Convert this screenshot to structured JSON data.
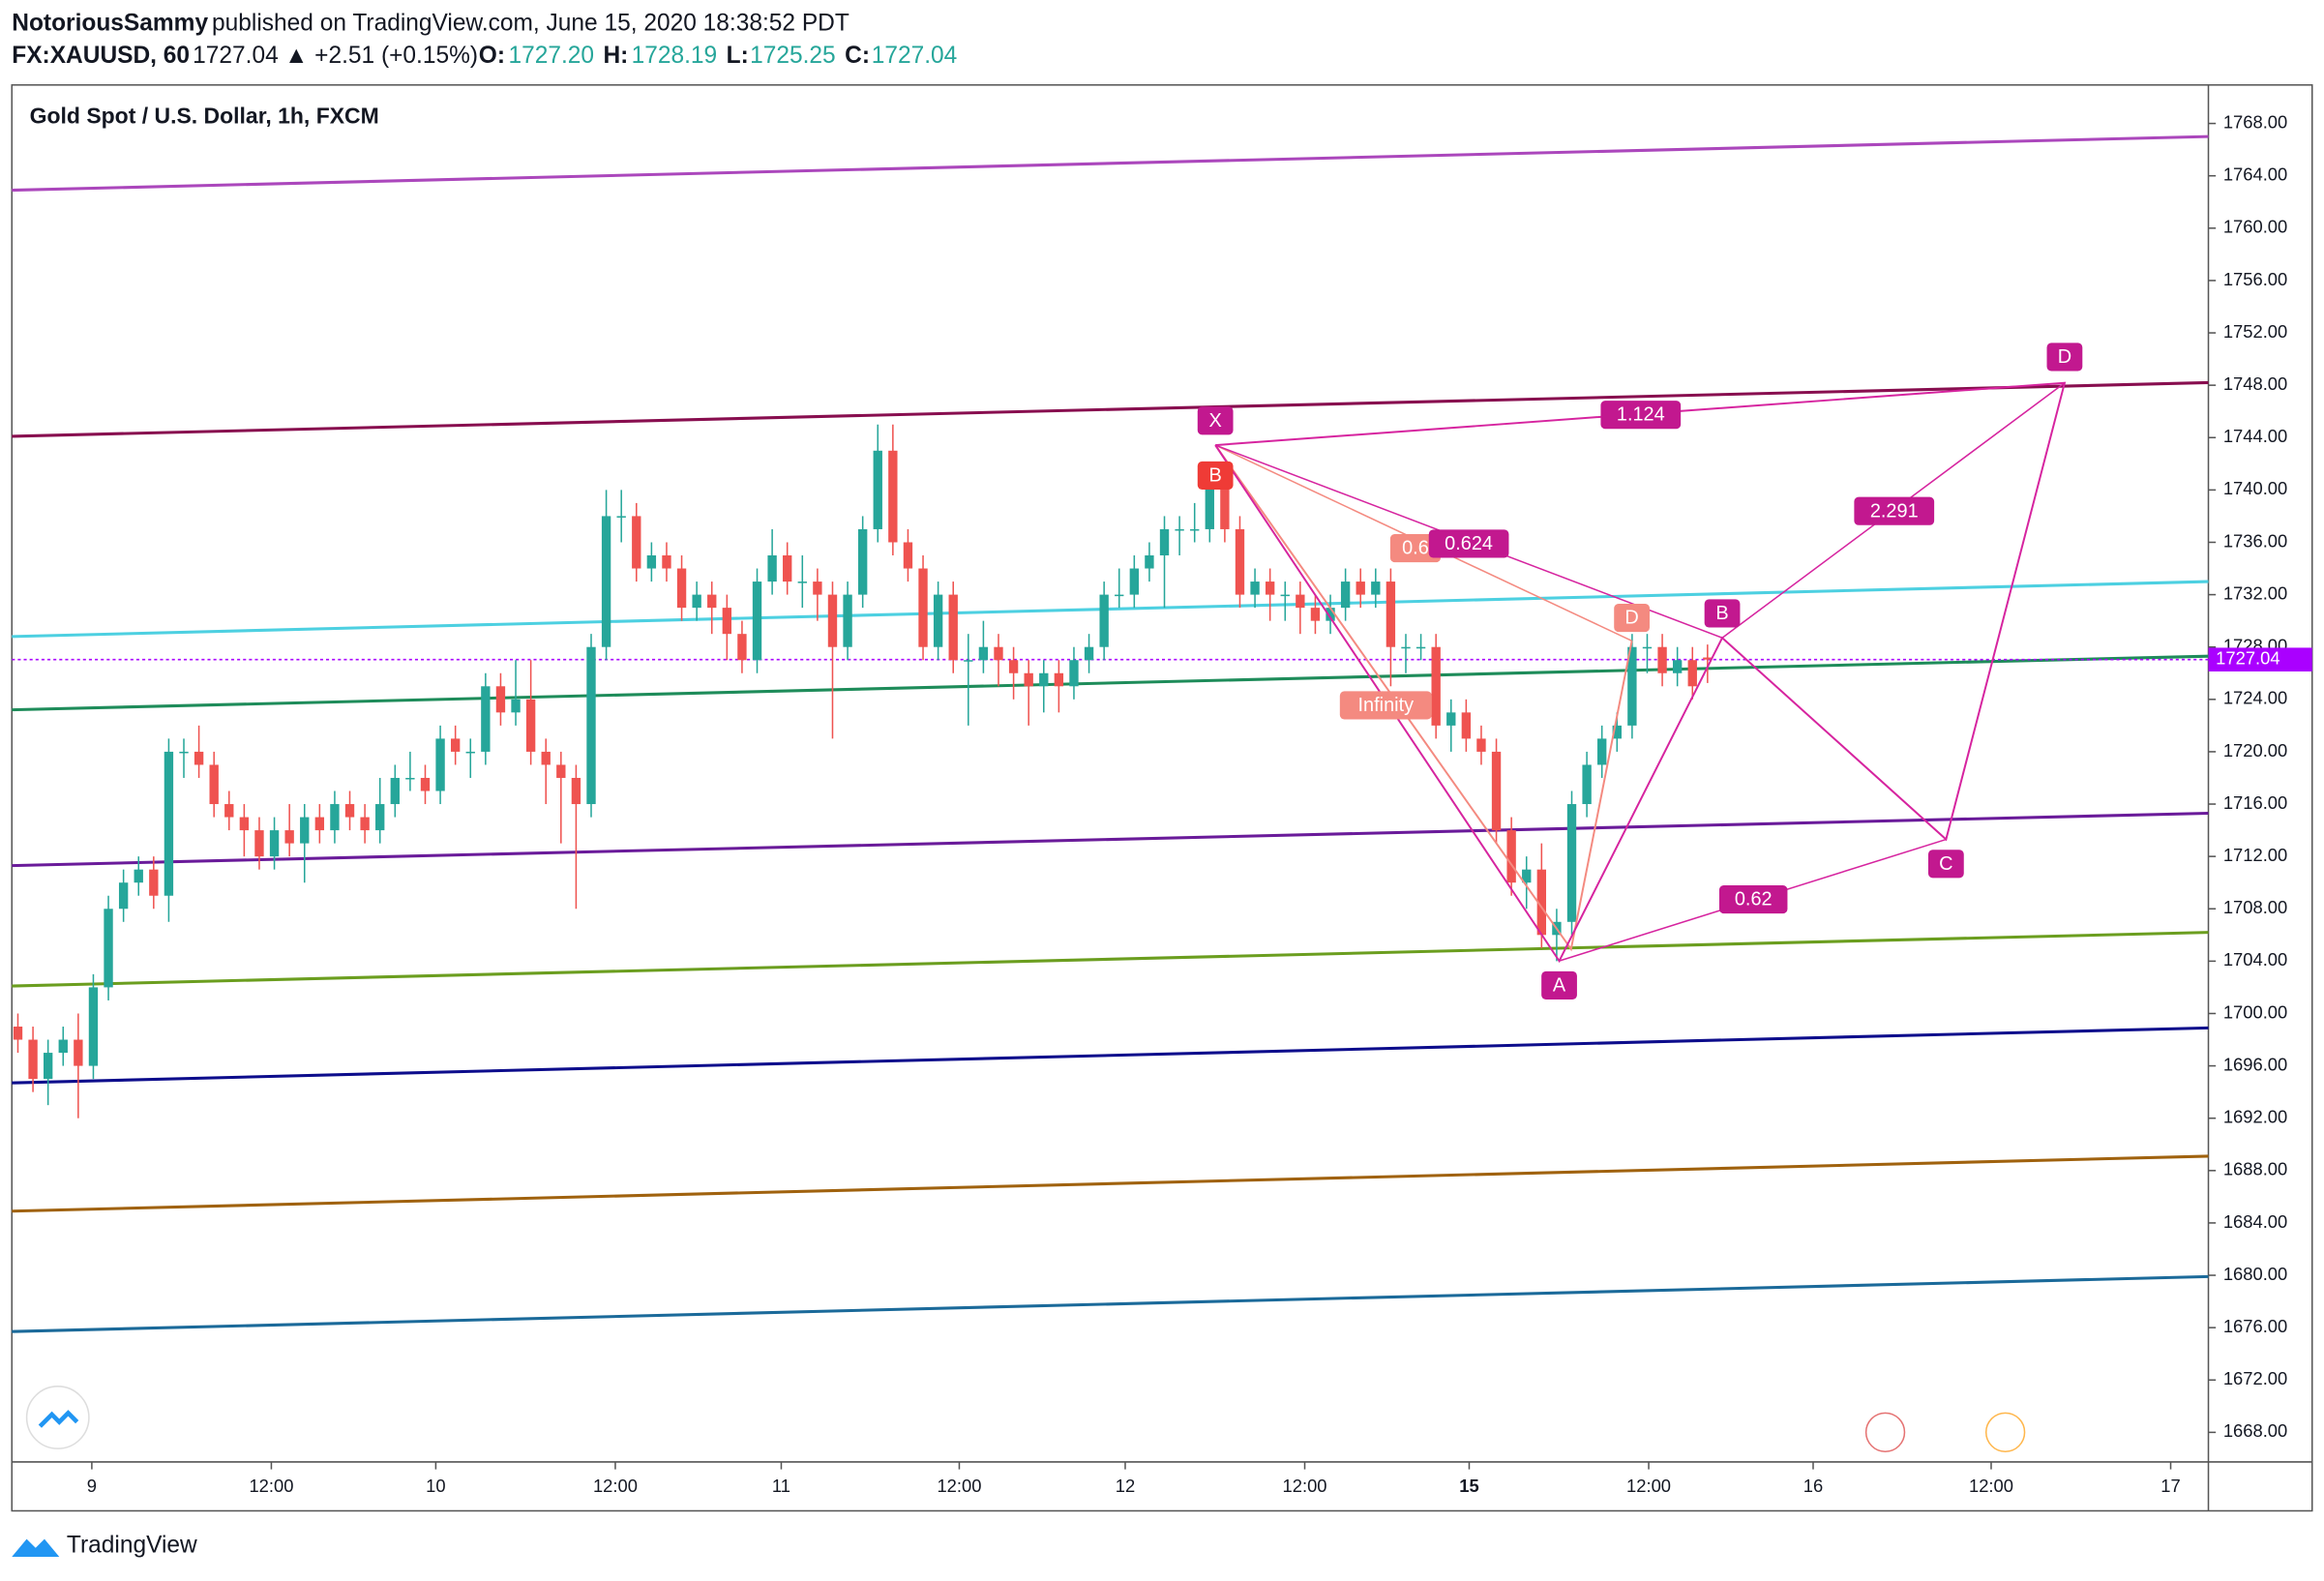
{
  "header": {
    "author": "NotoriousSammy",
    "published": "published on TradingView.com, June 15, 2020 18:38:52 PDT",
    "symbol": "FX:XAUUSD, 60",
    "last": "1727.04",
    "change": "▲ +2.51 (+0.15%)",
    "o_label": "O:",
    "o": "1727.20",
    "h_label": "H:",
    "h": "1728.19",
    "l_label": "L:",
    "l": "1725.25",
    "c_label": "C:",
    "c": "1727.04"
  },
  "footer": {
    "brand": "TradingView"
  },
  "chart_data": {
    "type": "candlestick",
    "title": "Gold Spot / U.S. Dollar, 1h, FXCM",
    "x": [
      0,
      1,
      2,
      3,
      4,
      5,
      6,
      7,
      8,
      9,
      10,
      11,
      12,
      13,
      14,
      15,
      16,
      17,
      18,
      19,
      20,
      21,
      22,
      23,
      24,
      25,
      26,
      27,
      28,
      29,
      30,
      31,
      32,
      33,
      34,
      35,
      36,
      37,
      38,
      39,
      40,
      41,
      42,
      43,
      44,
      45,
      46,
      47,
      48,
      49,
      50,
      51,
      52,
      53,
      54,
      55,
      56,
      57,
      58,
      59,
      60,
      61,
      62,
      63,
      64,
      65,
      66,
      67,
      68,
      69,
      70,
      71,
      72,
      73,
      74,
      75,
      76,
      77,
      78,
      79,
      80,
      81,
      82,
      83,
      84,
      85,
      86,
      87,
      88,
      89,
      90,
      91,
      92,
      93,
      94,
      95,
      96,
      97,
      98,
      99,
      100,
      101,
      102,
      103,
      104,
      105,
      106,
      107,
      108,
      109,
      110,
      111,
      112
    ],
    "open": [
      1699,
      1698,
      1695,
      1697,
      1698,
      1696,
      1702,
      1708,
      1710,
      1711,
      1709,
      1720,
      1720,
      1719,
      1716,
      1715,
      1714,
      1712,
      1714,
      1713,
      1715,
      1714,
      1716,
      1715,
      1714,
      1716,
      1718,
      1718,
      1717,
      1721,
      1720,
      1720,
      1725,
      1723,
      1724,
      1720,
      1719,
      1718,
      1716,
      1728,
      1738,
      1738,
      1734,
      1735,
      1734,
      1731,
      1732,
      1731,
      1729,
      1727,
      1733,
      1735,
      1733,
      1733,
      1732,
      1728,
      1732,
      1737,
      1743,
      1736,
      1734,
      1728,
      1732,
      1727,
      1727,
      1728,
      1727,
      1726,
      1725,
      1726,
      1725,
      1727,
      1728,
      1732,
      1732,
      1734,
      1735,
      1737,
      1737,
      1737,
      1741,
      1737,
      1732,
      1733,
      1732,
      1732,
      1731,
      1730,
      1731,
      1733,
      1732,
      1733,
      1728,
      1728,
      1728,
      1722,
      1723,
      1721,
      1720,
      1714,
      1710,
      1711,
      1706,
      1707,
      1716,
      1719,
      1721,
      1722,
      1728,
      1728,
      1726,
      1727,
      1727.2
    ],
    "high": [
      1700,
      1699,
      1698,
      1699,
      1700,
      1703,
      1709,
      1711,
      1712,
      1712,
      1721,
      1721,
      1722,
      1720,
      1717,
      1716,
      1715,
      1715,
      1716,
      1716,
      1716,
      1717,
      1717,
      1716,
      1718,
      1719,
      1720,
      1719,
      1722,
      1722,
      1721,
      1726,
      1726,
      1727,
      1727,
      1721,
      1720,
      1719,
      1729,
      1740,
      1740,
      1739,
      1736,
      1736,
      1735,
      1733,
      1733,
      1732,
      1730,
      1734,
      1737,
      1736,
      1735,
      1734,
      1733,
      1733,
      1738,
      1745,
      1745,
      1737,
      1735,
      1733,
      1733,
      1729,
      1730,
      1729,
      1728,
      1727,
      1727,
      1727,
      1728,
      1729,
      1733,
      1734,
      1735,
      1736,
      1738,
      1738,
      1739,
      1742,
      1742,
      1738,
      1734,
      1734,
      1733,
      1733,
      1732,
      1732,
      1734,
      1734,
      1734,
      1734,
      1729,
      1729,
      1729,
      1724,
      1724,
      1722,
      1721,
      1715,
      1712,
      1713,
      1708,
      1717,
      1720,
      1722,
      1723,
      1729,
      1729,
      1729,
      1728,
      1728,
      1728.19
    ],
    "low": [
      1697,
      1694,
      1693,
      1696,
      1692,
      1695,
      1701,
      1707,
      1709,
      1708,
      1707,
      1718,
      1718,
      1715,
      1714,
      1712,
      1711,
      1711,
      1712,
      1710,
      1713,
      1713,
      1714,
      1713,
      1713,
      1715,
      1717,
      1716,
      1716,
      1719,
      1718,
      1719,
      1722,
      1722,
      1719,
      1716,
      1713,
      1708,
      1715,
      1727,
      1736,
      1733,
      1733,
      1733,
      1730,
      1730,
      1729,
      1727,
      1726,
      1726,
      1732,
      1732,
      1731,
      1730,
      1721,
      1727,
      1731,
      1736,
      1735,
      1733,
      1727,
      1727,
      1726,
      1722,
      1726,
      1725,
      1724,
      1722,
      1723,
      1723,
      1724,
      1726,
      1727,
      1731,
      1731,
      1733,
      1731,
      1735,
      1736,
      1736,
      1736,
      1731,
      1731,
      1730,
      1730,
      1729,
      1729,
      1729,
      1730,
      1731,
      1731,
      1725,
      1726,
      1727,
      1721,
      1720,
      1720,
      1719,
      1713,
      1709,
      1708,
      1705,
      1704,
      1706,
      1715,
      1718,
      1720,
      1721,
      1726,
      1725,
      1725,
      1724,
      1725.25
    ],
    "close": [
      1698,
      1695,
      1697,
      1698,
      1696,
      1702,
      1708,
      1710,
      1711,
      1709,
      1720,
      1720,
      1719,
      1716,
      1715,
      1714,
      1712,
      1714,
      1713,
      1715,
      1714,
      1716,
      1715,
      1714,
      1716,
      1718,
      1718,
      1717,
      1721,
      1720,
      1720,
      1725,
      1723,
      1724,
      1720,
      1719,
      1718,
      1716,
      1728,
      1738,
      1738,
      1734,
      1735,
      1734,
      1731,
      1732,
      1731,
      1729,
      1727,
      1733,
      1735,
      1733,
      1733,
      1732,
      1728,
      1732,
      1737,
      1743,
      1736,
      1734,
      1728,
      1732,
      1727,
      1727,
      1728,
      1727,
      1726,
      1725,
      1726,
      1725,
      1727,
      1728,
      1732,
      1732,
      1734,
      1735,
      1737,
      1737,
      1737,
      1741,
      1737,
      1732,
      1733,
      1732,
      1732,
      1731,
      1730,
      1731,
      1733,
      1732,
      1733,
      1728,
      1728,
      1728,
      1722,
      1723,
      1721,
      1720,
      1714,
      1710,
      1711,
      1706,
      1707,
      1716,
      1719,
      1721,
      1722,
      1728,
      1728,
      1726,
      1727,
      1725,
      1727.04
    ],
    "up_color": "#26a69a",
    "down_color": "#ef5350",
    "xlim": [
      -0.4,
      145.2
    ],
    "xticks": [
      {
        "value": 4.9,
        "label": "9"
      },
      {
        "value": 16.8,
        "label": "12:00"
      },
      {
        "value": 27.7,
        "label": "10"
      },
      {
        "value": 39.6,
        "label": "12:00"
      },
      {
        "value": 50.6,
        "label": "11"
      },
      {
        "value": 62.4,
        "label": "12:00"
      },
      {
        "value": 73.4,
        "label": "12"
      },
      {
        "value": 85.3,
        "label": "12:00"
      },
      {
        "value": 96.2,
        "label": "15"
      },
      {
        "value": 108.1,
        "label": "12:00"
      },
      {
        "value": 119,
        "label": "16"
      },
      {
        "value": 130.8,
        "label": "12:00"
      },
      {
        "value": 142.7,
        "label": "17"
      }
    ],
    "ylim": [
      1665.74,
      1770.94
    ],
    "yticks": [
      {
        "value": 1668,
        "label": "1668.00"
      },
      {
        "value": 1672,
        "label": "1672.00"
      },
      {
        "value": 1676,
        "label": "1676.00"
      },
      {
        "value": 1680,
        "label": "1680.00"
      },
      {
        "value": 1684,
        "label": "1684.00"
      },
      {
        "value": 1688,
        "label": "1688.00"
      },
      {
        "value": 1692,
        "label": "1692.00"
      },
      {
        "value": 1696,
        "label": "1696.00"
      },
      {
        "value": 1700,
        "label": "1700.00"
      },
      {
        "value": 1704,
        "label": "1704.00"
      },
      {
        "value": 1708,
        "label": "1708.00"
      },
      {
        "value": 1712,
        "label": "1712.00"
      },
      {
        "value": 1716,
        "label": "1716.00"
      },
      {
        "value": 1720,
        "label": "1720.00"
      },
      {
        "value": 1724,
        "label": "1724.00"
      },
      {
        "value": 1728,
        "label": "1728.00"
      },
      {
        "value": 1732,
        "label": "1732.00"
      },
      {
        "value": 1736,
        "label": "1736.00"
      },
      {
        "value": 1740,
        "label": "1740.00"
      },
      {
        "value": 1744,
        "label": "1744.00"
      },
      {
        "value": 1748,
        "label": "1748.00"
      },
      {
        "value": 1752,
        "label": "1752.00"
      },
      {
        "value": 1756,
        "label": "1756.00"
      },
      {
        "value": 1760,
        "label": "1760.00"
      },
      {
        "value": 1764,
        "label": "1764.00"
      },
      {
        "value": 1768,
        "label": "1768.00"
      }
    ],
    "trend_lines": [
      {
        "color": "#ab47bc",
        "values": [
          1762.9,
          1767.0
        ]
      },
      {
        "color": "#880e4f",
        "values": [
          1744.1,
          1748.2
        ]
      },
      {
        "color": "#4dd0e1",
        "values": [
          1728.8,
          1733.0
        ]
      },
      {
        "color": "#1e8c5a",
        "values": [
          1723.2,
          1727.3
        ]
      },
      {
        "color": "#6a1b9a",
        "values": [
          1711.3,
          1715.3
        ]
      },
      {
        "color": "#6b9e1f",
        "values": [
          1702.1,
          1706.2
        ]
      },
      {
        "color": "#0d0d8c",
        "values": [
          1694.7,
          1698.9
        ]
      },
      {
        "color": "#a0620e",
        "values": [
          1684.9,
          1689.1
        ]
      },
      {
        "color": "#1b6a9a",
        "values": [
          1675.7,
          1679.9
        ]
      }
    ],
    "last_price": {
      "value": 1727.04,
      "label": "1727.04",
      "color": "#aa00ff"
    },
    "pattern": {
      "X": "X",
      "A": "A",
      "B": "B",
      "C": "C",
      "D": "D",
      "r1": "1.124",
      "r2": "0.624",
      "r3": "2.291",
      "r4": "0.62",
      "old_B": "B",
      "old_D": "D",
      "old_r": "0.6",
      "old_inf": "Infinity"
    }
  }
}
